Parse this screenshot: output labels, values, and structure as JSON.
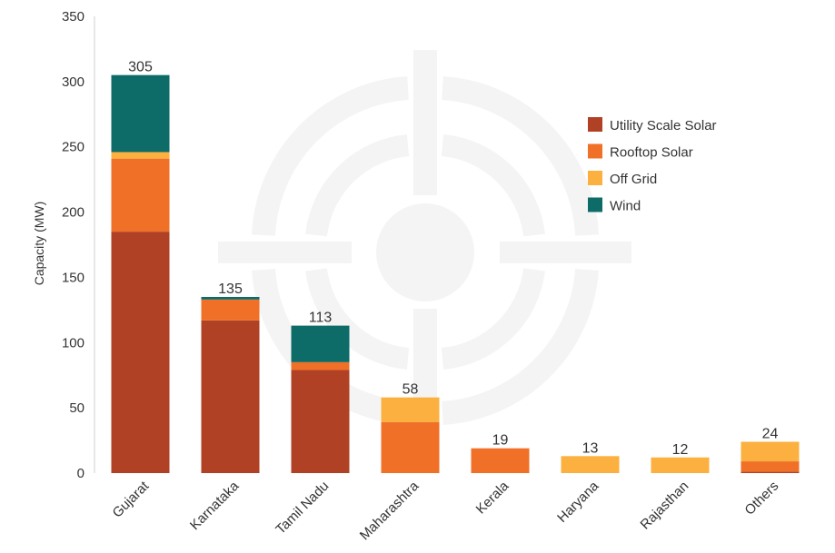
{
  "chart_data": {
    "type": "bar",
    "stacked": true,
    "title": "",
    "xlabel": "",
    "ylabel": "Capacity (MW)",
    "ylim": [
      0,
      350
    ],
    "yticks": [
      0,
      50,
      100,
      150,
      200,
      250,
      300,
      350
    ],
    "grid": false,
    "legend_position": "right",
    "categories": [
      "Gujarat",
      "Karnataka",
      "Tamil Nadu",
      "Maharashtra",
      "Kerala",
      "Haryana",
      "Rajasthan",
      "Others"
    ],
    "totals": [
      305,
      135,
      113,
      58,
      19,
      13,
      12,
      24
    ],
    "series": [
      {
        "name": "Utility Scale Solar",
        "color": "#b04125",
        "values": [
          185,
          117,
          79,
          0,
          0,
          0,
          0,
          1
        ]
      },
      {
        "name": "Rooftop Solar",
        "color": "#f07028",
        "values": [
          56,
          16,
          6,
          39,
          19,
          0,
          0,
          8
        ]
      },
      {
        "name": "Off Grid",
        "color": "#fbb040",
        "values": [
          5,
          0,
          0,
          19,
          0,
          13,
          12,
          15
        ]
      },
      {
        "name": "Wind",
        "color": "#0d6b68",
        "values": [
          59,
          2,
          28,
          0,
          0,
          0,
          0,
          0
        ]
      }
    ]
  }
}
